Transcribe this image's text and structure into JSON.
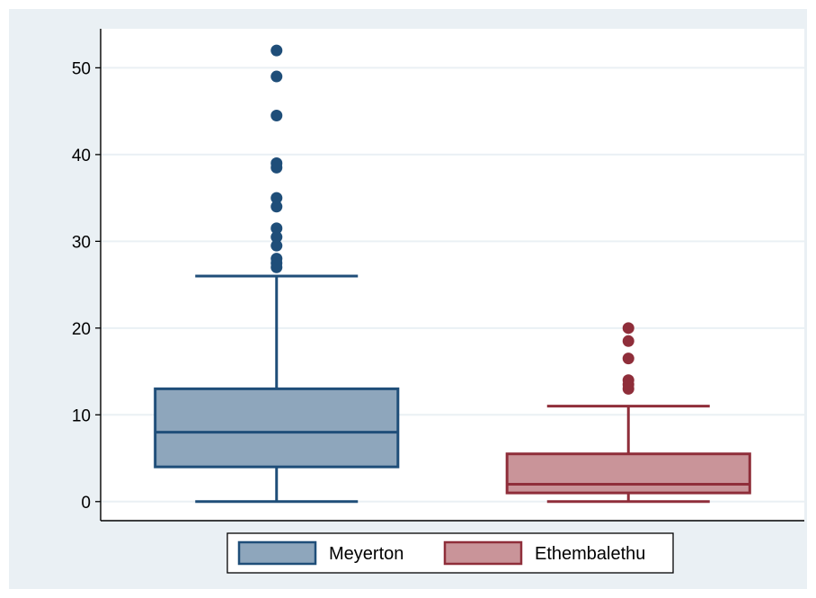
{
  "chart_data": {
    "type": "box",
    "ylim": [
      -2.2,
      54.5
    ],
    "yticks": [
      0,
      10,
      20,
      30,
      40,
      50
    ],
    "grid": true,
    "legend_position": "bottom",
    "series": [
      {
        "name": "Meyerton",
        "color": "#1f4e79",
        "fill": "#8ea6bc",
        "whisker_low": 0,
        "q1": 4,
        "median": 8,
        "q3": 13,
        "whisker_high": 26,
        "outliers": [
          27,
          27.5,
          28,
          29.5,
          30.5,
          31.5,
          34,
          35,
          38.5,
          39,
          44.5,
          49,
          52
        ]
      },
      {
        "name": "Ethembalethu",
        "color": "#8f2e3a",
        "fill": "#c99499",
        "whisker_low": 0,
        "q1": 1,
        "median": 2,
        "q3": 5.5,
        "whisker_high": 11,
        "outliers": [
          13,
          13.5,
          14,
          16.5,
          18.5,
          20
        ]
      }
    ]
  }
}
